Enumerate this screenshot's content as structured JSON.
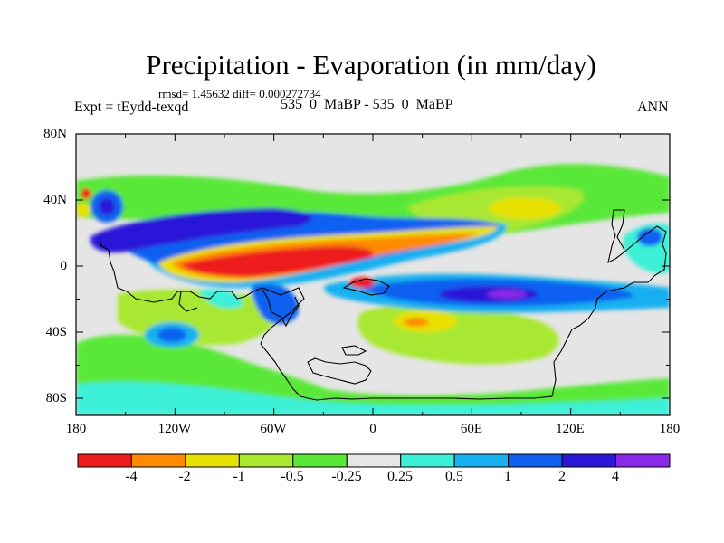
{
  "title": "Precipitation - Evaporation (in mm/day)",
  "stats": "rmsd= 1.45632  diff= 0.000272734",
  "left_label": "Expt = tEydd-texqd",
  "center_label": "535_0_MaBP - 535_0_MaBP",
  "season": "ANN",
  "map": {
    "lat_ticks": [
      "80N",
      "40N",
      "0",
      "40S",
      "80S"
    ],
    "lon_ticks": [
      "180",
      "120W",
      "60W",
      "0",
      "60E",
      "120E",
      "180"
    ],
    "background_color": "#e5e5e5"
  },
  "colorbar": {
    "colors": [
      "#ee1c1c",
      "#ff8a00",
      "#e8e000",
      "#a8e830",
      "#5ae838",
      "#e6e6e6",
      "#3cf0d8",
      "#18b0f0",
      "#1060f0",
      "#2a18d8",
      "#8a2ae8"
    ],
    "labels": [
      "-4",
      "-2",
      "-1",
      "-0.5",
      "-0.25",
      "0.25",
      "0.5",
      "1",
      "2",
      "4"
    ]
  }
}
